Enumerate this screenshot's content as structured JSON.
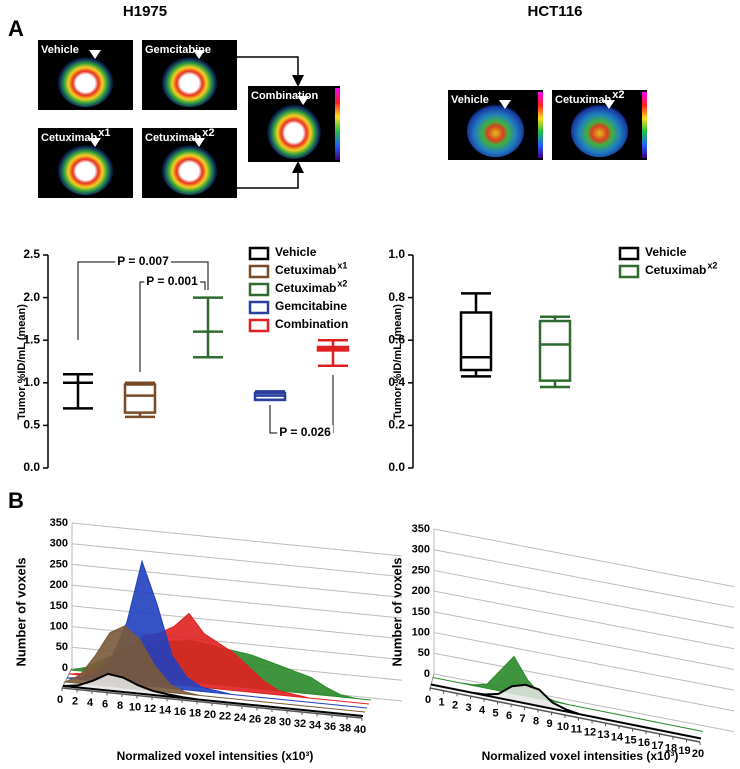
{
  "panel_labels": {
    "a": "A",
    "b": "B"
  },
  "column_titles": [
    "H1975",
    "HCT116"
  ],
  "images": [
    {
      "label": "Vehicle"
    },
    {
      "label": "Gemcitabine"
    },
    {
      "label": "Cetuximab",
      "label_sup": "x1"
    },
    {
      "label": "Cetuximab",
      "label_sup": "x2"
    },
    {
      "label": "Combination"
    },
    {
      "label": "Vehicle"
    },
    {
      "label": "Cetuximab",
      "label_sup": "x2"
    }
  ],
  "chart_data": [
    {
      "type": "box",
      "ylabel": "Tumor %ID/mL (mean)",
      "ylim": [
        0,
        2.5
      ],
      "yticks": [
        {
          "value": 0,
          "label": "0.0"
        },
        0.5,
        {
          "value": 1,
          "label": "1.0"
        },
        1.5,
        {
          "value": 2,
          "label": "2.0"
        },
        2.5
      ],
      "series": [
        {
          "name": "Vehicle",
          "color": "#000000",
          "min": 0.7,
          "q1": 1.0,
          "median": 1.0,
          "q3": 1.0,
          "max": 1.1
        },
        {
          "name": "Cetuximab",
          "name_sup": "x1",
          "color": "#7a4a28",
          "min": 0.6,
          "q1": 0.65,
          "median": 0.85,
          "q3": 0.98,
          "max": 1.0
        },
        {
          "name": "Cetuximab",
          "name_sup": "x2",
          "color": "#2f6b30",
          "min": 1.3,
          "q1": 1.6,
          "median": 1.6,
          "q3": 1.6,
          "max": 2.0
        },
        {
          "name": "Gemcitabine",
          "color": "#2a3fa0",
          "min": 0.8,
          "q1": 0.8,
          "median": 0.85,
          "q3": 0.88,
          "max": 0.9
        },
        {
          "name": "Combination",
          "color": "#e02020",
          "min": 1.2,
          "q1": 1.38,
          "median": 1.4,
          "q3": 1.42,
          "max": 1.5
        }
      ],
      "annotations": [
        {
          "text": "P = 0.007"
        },
        {
          "text": "P = 0.001"
        },
        {
          "text": "P = 0.026"
        }
      ]
    },
    {
      "type": "box",
      "ylabel": "Tumor %ID/mL (mean)",
      "ylim": [
        0,
        1
      ],
      "yticks": [
        {
          "value": 0,
          "label": "0.0"
        },
        0.2,
        0.4,
        0.6,
        0.8,
        {
          "value": 1,
          "label": "1.0"
        }
      ],
      "series": [
        {
          "name": "Vehicle",
          "color": "#000000",
          "min": 0.43,
          "q1": 0.46,
          "median": 0.52,
          "q3": 0.73,
          "max": 0.82
        },
        {
          "name": "Cetuximab",
          "name_sup": "x2",
          "color": "#2f6b30",
          "min": 0.38,
          "q1": 0.41,
          "median": 0.58,
          "q3": 0.69,
          "max": 0.71
        }
      ]
    },
    {
      "type": "area3d",
      "ylabel": "Number of voxels",
      "xlabel": "Normalized voxel intensities (x10³)",
      "x": [
        0,
        2,
        4,
        6,
        8,
        10,
        12,
        14,
        16,
        18,
        20,
        22,
        24,
        26,
        28,
        30,
        32,
        34,
        36,
        38,
        40
      ],
      "xlim": [
        0,
        40
      ],
      "xticks": [
        0,
        2,
        4,
        6,
        8,
        10,
        12,
        14,
        16,
        18,
        20,
        22,
        24,
        26,
        28,
        30,
        32,
        34,
        36,
        38,
        40
      ],
      "ylim": [
        0,
        350
      ],
      "yticks": [
        0,
        50,
        100,
        150,
        200,
        250,
        300,
        350
      ],
      "series": [
        {
          "color": "#e6e6e6",
          "values": [
            0,
            5,
            20,
            40,
            35,
            20,
            10,
            5,
            2,
            0,
            0,
            0,
            0,
            0,
            0,
            0,
            0,
            0,
            0,
            0,
            0
          ]
        },
        {
          "color": "#7a5a3a",
          "values": [
            0,
            20,
            70,
            130,
            150,
            120,
            60,
            20,
            5,
            0,
            0,
            0,
            0,
            0,
            0,
            0,
            0,
            0,
            0,
            0,
            0
          ]
        },
        {
          "color": "#2040c0",
          "values": [
            0,
            5,
            20,
            60,
            150,
            300,
            200,
            80,
            30,
            10,
            5,
            0,
            0,
            0,
            0,
            0,
            0,
            0,
            0,
            0,
            0
          ]
        },
        {
          "color": "#e02020",
          "values": [
            0,
            5,
            20,
            50,
            80,
            110,
            120,
            140,
            175,
            130,
            110,
            90,
            60,
            30,
            10,
            5,
            0,
            0,
            0,
            0,
            0
          ]
        },
        {
          "color": "#2a8a2a",
          "values": [
            0,
            10,
            30,
            50,
            70,
            80,
            90,
            95,
            100,
            95,
            90,
            85,
            80,
            70,
            60,
            50,
            40,
            20,
            5,
            0,
            0
          ]
        }
      ]
    },
    {
      "type": "area3d",
      "ylabel": "Number of voxels",
      "xlabel": "Normalized voxel intensities (x10³)",
      "x": [
        0,
        1,
        2,
        3,
        4,
        5,
        6,
        7,
        8,
        9,
        10,
        11,
        12,
        13,
        14,
        15,
        16,
        17,
        18,
        19,
        20
      ],
      "xlim": [
        0,
        20
      ],
      "xticks": [
        0,
        1,
        2,
        3,
        4,
        5,
        6,
        7,
        8,
        9,
        10,
        11,
        12,
        13,
        14,
        15,
        16,
        17,
        18,
        19,
        20
      ],
      "ylim": [
        0,
        350
      ],
      "yticks": [
        0,
        50,
        100,
        150,
        200,
        250,
        300,
        350
      ],
      "series": [
        {
          "color": "#e6e6e6",
          "values": [
            0,
            0,
            0,
            0,
            2,
            10,
            35,
            45,
            40,
            15,
            5,
            0,
            0,
            0,
            0,
            0,
            0,
            0,
            0,
            0,
            0
          ]
        },
        {
          "color": "#2a8a2a",
          "values": [
            0,
            0,
            0,
            2,
            10,
            50,
            90,
            40,
            10,
            2,
            0,
            0,
            0,
            0,
            0,
            0,
            0,
            0,
            0,
            0,
            0
          ]
        }
      ]
    }
  ]
}
